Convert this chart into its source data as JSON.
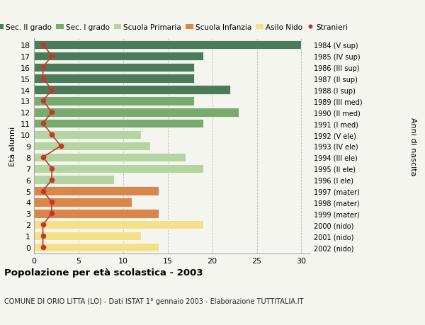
{
  "ages": [
    18,
    17,
    16,
    15,
    14,
    13,
    12,
    11,
    10,
    9,
    8,
    7,
    6,
    5,
    4,
    3,
    2,
    1,
    0
  ],
  "years": [
    "1984 (V sup)",
    "1985 (IV sup)",
    "1986 (III sup)",
    "1987 (II sup)",
    "1988 (I sup)",
    "1989 (III med)",
    "1990 (II med)",
    "1991 (I med)",
    "1992 (V ele)",
    "1993 (IV ele)",
    "1994 (III ele)",
    "1995 (II ele)",
    "1996 (I ele)",
    "1997 (mater)",
    "1998 (mater)",
    "1999 (mater)",
    "2000 (nido)",
    "2001 (nido)",
    "2002 (nido)"
  ],
  "bar_values": [
    30,
    19,
    18,
    18,
    22,
    18,
    23,
    19,
    12,
    13,
    17,
    19,
    9,
    14,
    11,
    14,
    19,
    12,
    14
  ],
  "stranieri": [
    1,
    2,
    1,
    1,
    2,
    1,
    2,
    1,
    2,
    3,
    1,
    2,
    2,
    1,
    2,
    2,
    1,
    1,
    1
  ],
  "bar_colors": [
    "#4a7c59",
    "#4a7c59",
    "#4a7c59",
    "#4a7c59",
    "#4a7c59",
    "#7aab6e",
    "#7aab6e",
    "#7aab6e",
    "#b5d5a0",
    "#b5d5a0",
    "#b5d5a0",
    "#b5d5a0",
    "#b5d5a0",
    "#d9864a",
    "#d9864a",
    "#d9864a",
    "#f5e08a",
    "#f5e08a",
    "#f5e08a"
  ],
  "color_sec2": "#4a7c59",
  "color_sec1": "#7aab6e",
  "color_prim": "#b5d5a0",
  "color_infanzia": "#d9864a",
  "color_nido": "#f5e08a",
  "color_stranieri": "#c0392b",
  "title_bold": "Popolazione per età scolastica - 2003",
  "subtitle": "COMUNE DI ORIO LITTA (LO) - Dati ISTAT 1° gennaio 2003 - Elaborazione TUTTITALIA.IT",
  "ylabel": "Età alunni",
  "ylabel_right": "Anni di nascita",
  "xlim": [
    0,
    31
  ],
  "background_color": "#f5f5f0",
  "grid_color": "#bbbbbb",
  "legend_labels": [
    "Sec. II grado",
    "Sec. I grado",
    "Scuola Primaria",
    "Scuola Infanzia",
    "Asilo Nido",
    "Stranieri"
  ]
}
